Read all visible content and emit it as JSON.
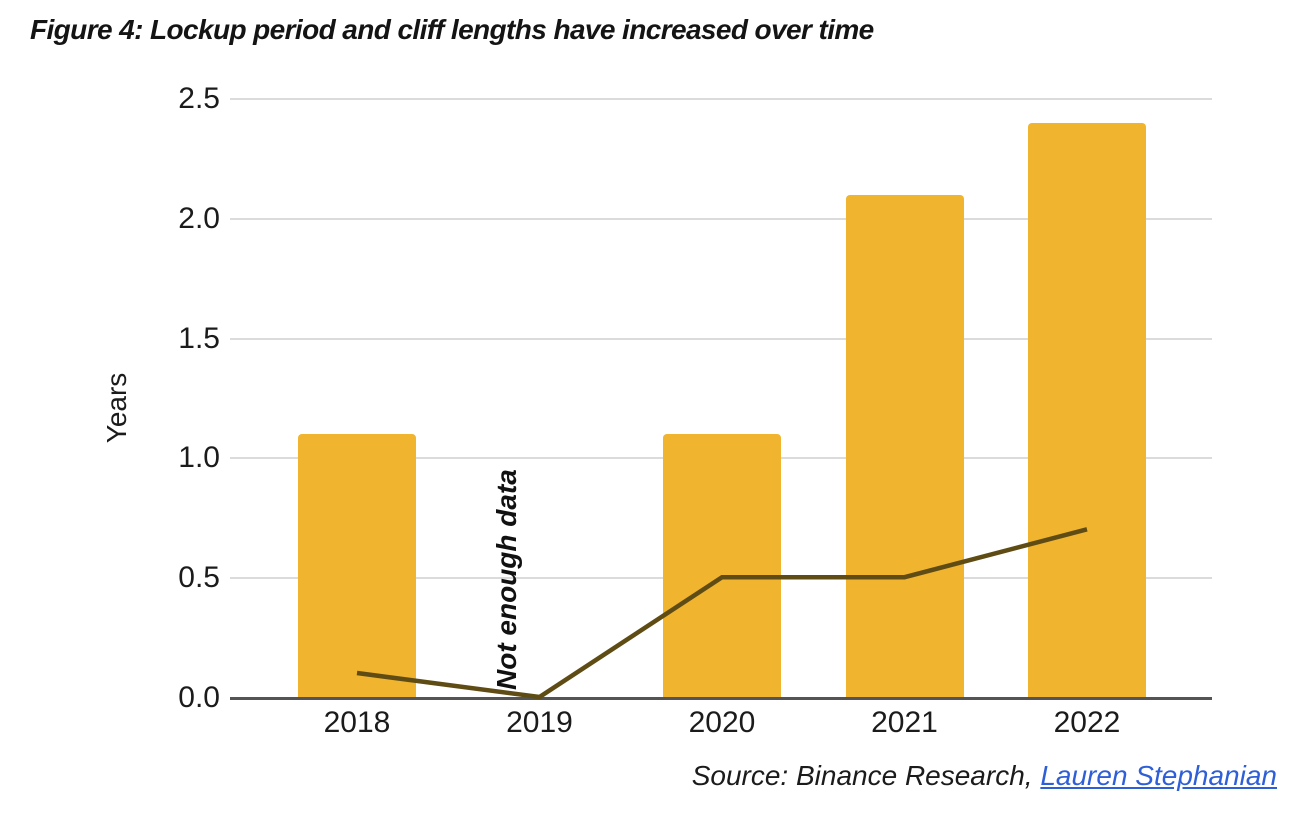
{
  "figure": {
    "title": "Figure 4: Lockup period and cliff lengths have increased over time",
    "source_prefix": "Source: Binance Research, ",
    "source_link": "Lauren Stephanian"
  },
  "chart_data": {
    "type": "bar",
    "categories": [
      "2018",
      "2019",
      "2020",
      "2021",
      "2022"
    ],
    "series": [
      {
        "name": "lockup-period-bars",
        "type": "bar",
        "values": [
          1.1,
          null,
          1.1,
          2.1,
          2.4
        ],
        "color": "#F0B42E"
      },
      {
        "name": "cliff-length-line",
        "type": "line",
        "values": [
          0.1,
          0.0,
          0.5,
          0.5,
          0.7
        ],
        "color": "#5F4C15"
      }
    ],
    "title": "Figure 4: Lockup period and cliff lengths have increased over time",
    "xlabel": "",
    "ylabel": "Years",
    "yticks": [
      "0.0",
      "0.5",
      "1.0",
      "1.5",
      "2.0",
      "2.5"
    ],
    "ylim": [
      0,
      2.5
    ],
    "grid": true,
    "legend": "none",
    "annotations": [
      {
        "text": "Not enough data",
        "category": "2019",
        "rotation": -90
      }
    ]
  },
  "colors": {
    "bar": "#F0B42E",
    "line": "#5F4C15",
    "gridline": "#DBDBDB",
    "axis": "#545454",
    "link": "#2E5FD8",
    "text": "#1B1B1B"
  }
}
